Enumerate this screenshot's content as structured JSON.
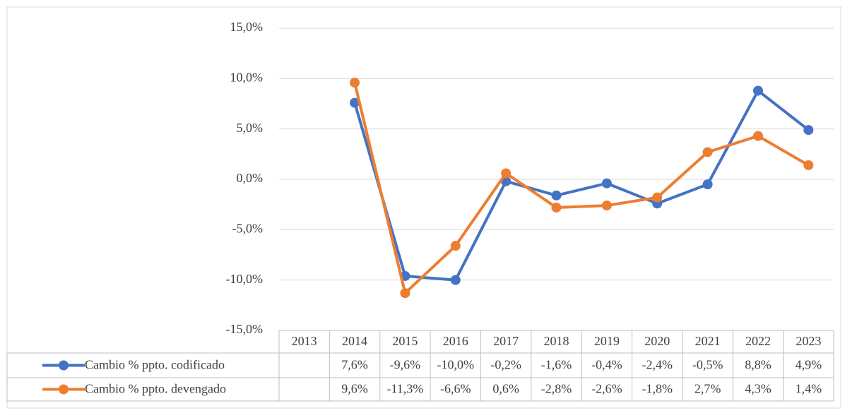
{
  "chart_data": {
    "type": "line",
    "categories": [
      "2013",
      "2014",
      "2015",
      "2016",
      "2017",
      "2018",
      "2019",
      "2020",
      "2021",
      "2022",
      "2023"
    ],
    "series": [
      {
        "name": "Cambio % ppto. codificado",
        "color": "#4472c4",
        "values": [
          null,
          7.6,
          -9.6,
          -10.0,
          -0.2,
          -1.6,
          -0.4,
          -2.4,
          -0.5,
          8.8,
          4.9
        ],
        "value_labels": [
          null,
          "7,6%",
          "-9,6%",
          "-10,0%",
          "-0,2%",
          "-1,6%",
          "-0,4%",
          "-2,4%",
          "-0,5%",
          "8,8%",
          "4,9%"
        ]
      },
      {
        "name": "Cambio % ppto. devengado",
        "color": "#ed7d31",
        "values": [
          null,
          9.6,
          -11.3,
          -6.6,
          0.6,
          -2.8,
          -2.6,
          -1.8,
          2.7,
          4.3,
          1.4
        ],
        "value_labels": [
          null,
          "9,6%",
          "-11,3%",
          "-6,6%",
          "0,6%",
          "-2,8%",
          "-2,6%",
          "-1,8%",
          "2,7%",
          "4,3%",
          "1,4%"
        ]
      }
    ],
    "ylim": [
      -15,
      15
    ],
    "yticks": [
      {
        "value": -15,
        "label": "-15,0%"
      },
      {
        "value": -10,
        "label": "-10,0%"
      },
      {
        "value": -5,
        "label": "-5,0%"
      },
      {
        "value": 0,
        "label": "0,0%"
      },
      {
        "value": 5,
        "label": "5,0%"
      },
      {
        "value": 10,
        "label": "10,0%"
      },
      {
        "value": 15,
        "label": "15,0%"
      }
    ],
    "grid": true,
    "legend": "bottom-table"
  }
}
